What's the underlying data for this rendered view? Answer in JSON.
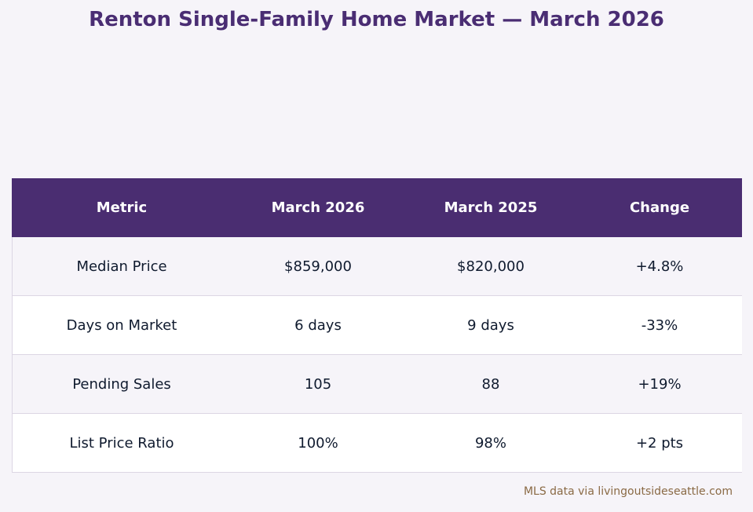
{
  "title": "Renton Single-Family Home Market — March 2026",
  "source": "MLS data via livingoutsideseattle.com",
  "colors": {
    "header_bg": "#4a2d71",
    "title": "#4a2d73",
    "source": "#8a6a45"
  },
  "chart_data": {
    "type": "table",
    "title": "Renton Single-Family Home Market — March 2026",
    "columns": [
      "Metric",
      "March 2026",
      "March 2025",
      "Change"
    ],
    "rows": [
      [
        "Median Price",
        "$859,000",
        "$820,000",
        "+4.8%"
      ],
      [
        "Days on Market",
        "6 days",
        "9 days",
        "-33%"
      ],
      [
        "Pending Sales",
        "105",
        "88",
        "+19%"
      ],
      [
        "List Price Ratio",
        "100%",
        "98%",
        "+2 pts"
      ]
    ]
  }
}
